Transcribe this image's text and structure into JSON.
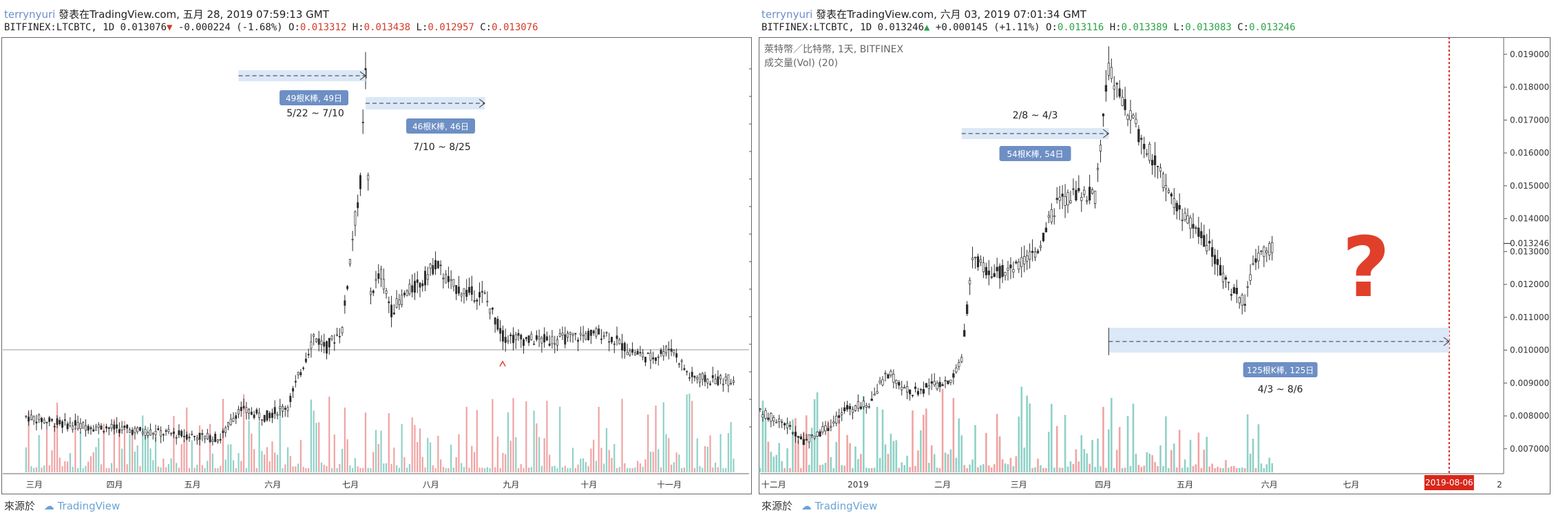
{
  "left": {
    "header": {
      "user": "terrynyuri",
      "published": "發表在TradingView.com, 五月 28, 2019 07:59:13 GMT",
      "symbol": "BITFINEX:LTCBTC, 1D 0.013076",
      "change": "-0.000224 (-1.68%)",
      "o_label": "O:",
      "o": "0.013312",
      "h_label": "H:",
      "h": "0.013438",
      "l_label": "L:",
      "l": "0.012957",
      "c_label": "C:",
      "c": "0.013076"
    },
    "source": {
      "label": "來源於",
      "brand": "TradingView"
    }
  },
  "right": {
    "header": {
      "user": "terrynyuri",
      "published": "發表在TradingView.com, 六月 03, 2019 07:01:34 GMT",
      "symbol": "BITFINEX:LTCBTC, 1D 0.013246",
      "change": "+0.000145 (+1.11%)",
      "o_label": "O:",
      "o": "0.013116",
      "h_label": "H:",
      "h": "0.013389",
      "l_label": "L:",
      "l": "0.013083",
      "c_label": "C:",
      "c": "0.013246"
    },
    "pair_title": "萊特幣／比特幣, 1天, BITFINEX",
    "volume_label": "成交量(Vol) (20)",
    "source": {
      "label": "來源於",
      "brand": "TradingView"
    }
  },
  "colors": {
    "up": "#2b2b2b",
    "down": "#2b2b2b",
    "vol_up": "#8fd1c7",
    "vol_down": "#f0a3a3",
    "range_fill": "#dbe8f7",
    "range_box": "#6d8fc4",
    "question": "#e0402a",
    "vline": "#e02020"
  },
  "chart_data": [
    {
      "type": "candlestick",
      "title": "",
      "x_ticks": [
        "三月",
        "四月",
        "五月",
        "六月",
        "七月",
        "八月",
        "九月",
        "十月",
        "十一月"
      ],
      "series": [
        {
          "name": "",
          "points": [
            [
              "2018-03-01",
              0.0076
            ],
            [
              "2018-03-15",
              0.0074
            ],
            [
              "2018-04-01",
              0.0073
            ],
            [
              "2018-04-15",
              0.0072
            ],
            [
              "2018-05-01",
              0.0071
            ],
            [
              "2018-05-15",
              0.007
            ],
            [
              "2018-05-22",
              0.0078
            ],
            [
              "2018-06-01",
              0.0076
            ],
            [
              "2018-06-10",
              0.0079
            ],
            [
              "2018-06-20",
              0.0098
            ],
            [
              "2018-06-25",
              0.0095
            ],
            [
              "2018-07-01",
              0.01
            ],
            [
              "2018-07-05",
              0.0125
            ],
            [
              "2018-07-08",
              0.014
            ],
            [
              "2018-07-10",
              0.017
            ],
            [
              "2018-07-12",
              0.011
            ],
            [
              "2018-07-16",
              0.0115
            ],
            [
              "2018-07-20",
              0.0105
            ],
            [
              "2018-07-26",
              0.011
            ],
            [
              "2018-08-01",
              0.0113
            ],
            [
              "2018-08-06",
              0.0118
            ],
            [
              "2018-08-12",
              0.0112
            ],
            [
              "2018-08-18",
              0.011
            ],
            [
              "2018-08-25",
              0.0109
            ],
            [
              "2018-09-01",
              0.0098
            ],
            [
              "2018-09-10",
              0.0097
            ],
            [
              "2018-09-20",
              0.0097
            ],
            [
              "2018-10-01",
              0.0098
            ],
            [
              "2018-10-10",
              0.0099
            ],
            [
              "2018-10-20",
              0.0094
            ],
            [
              "2018-10-28",
              0.0092
            ],
            [
              "2018-11-05",
              0.0095
            ],
            [
              "2018-11-12",
              0.0087
            ],
            [
              "2018-11-20",
              0.0086
            ],
            [
              "2018-11-30",
              0.0086
            ]
          ]
        }
      ],
      "annotations": [
        {
          "box": "49根K棒, 49日",
          "range": "5/22 ~ 7/10"
        },
        {
          "box": "46根K棒, 46日",
          "range": "7/10 ~ 8/25"
        }
      ]
    },
    {
      "type": "candlestick",
      "title": "萊特幣／比特幣, 1天, BITFINEX",
      "x_ticks": [
        "十二月",
        "2019",
        "二月",
        "三月",
        "四月",
        "五月",
        "六月",
        "七月",
        "2"
      ],
      "y_ticks": [
        "0.019000",
        "0.018000",
        "0.017000",
        "0.016000",
        "0.015000",
        "0.014000",
        "0.013000",
        "0.012000",
        "0.011000",
        "0.010000",
        "0.009000",
        "0.008000",
        "0.007000"
      ],
      "ylim": [
        0.0062,
        0.0195
      ],
      "last_price": "0.013246",
      "marker_date": "2019-08-06",
      "series": [
        {
          "name": "",
          "points": [
            [
              "2018-11-26",
              0.0081
            ],
            [
              "2018-12-05",
              0.0078
            ],
            [
              "2018-12-12",
              0.0072
            ],
            [
              "2018-12-20",
              0.0076
            ],
            [
              "2018-12-28",
              0.0082
            ],
            [
              "2019-01-05",
              0.0084
            ],
            [
              "2019-01-12",
              0.0093
            ],
            [
              "2019-01-20",
              0.0087
            ],
            [
              "2019-01-28",
              0.0089
            ],
            [
              "2019-02-05",
              0.0092
            ],
            [
              "2019-02-08",
              0.0098
            ],
            [
              "2019-02-12",
              0.0128
            ],
            [
              "2019-02-20",
              0.0123
            ],
            [
              "2019-02-28",
              0.0125
            ],
            [
              "2019-03-08",
              0.0131
            ],
            [
              "2019-03-15",
              0.0145
            ],
            [
              "2019-03-22",
              0.0148
            ],
            [
              "2019-03-29",
              0.0147
            ],
            [
              "2019-04-03",
              0.0186
            ],
            [
              "2019-04-10",
              0.0172
            ],
            [
              "2019-04-18",
              0.016
            ],
            [
              "2019-04-26",
              0.0147
            ],
            [
              "2019-05-03",
              0.0138
            ],
            [
              "2019-05-10",
              0.0131
            ],
            [
              "2019-05-17",
              0.0119
            ],
            [
              "2019-05-23",
              0.0115
            ],
            [
              "2019-05-27",
              0.0128
            ],
            [
              "2019-06-03",
              0.0132
            ]
          ]
        }
      ],
      "annotations": [
        {
          "range": "2/8 ~ 4/3",
          "box": "54根K棒, 54日"
        },
        {
          "box": "125根K棒, 125日",
          "range": "4/3 ~ 8/6"
        }
      ]
    }
  ]
}
